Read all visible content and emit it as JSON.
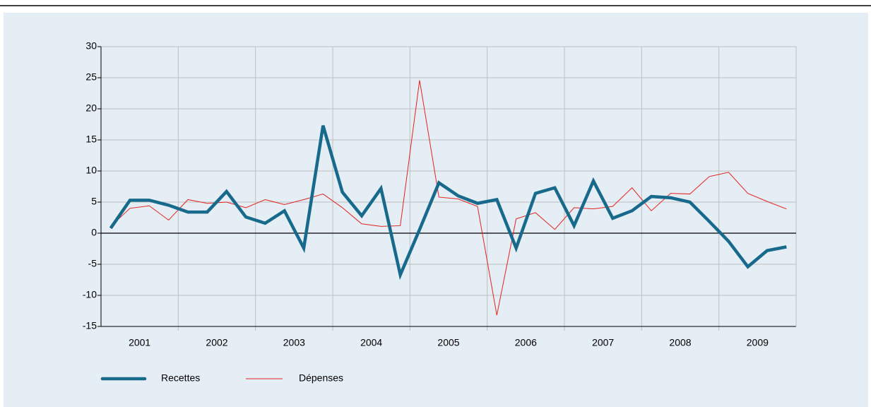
{
  "chart_data": {
    "type": "line",
    "x": [
      2001.125,
      2001.375,
      2001.625,
      2001.875,
      2002.125,
      2002.375,
      2002.625,
      2002.875,
      2003.125,
      2003.375,
      2003.625,
      2003.875,
      2004.125,
      2004.375,
      2004.625,
      2004.875,
      2005.125,
      2005.375,
      2005.625,
      2005.875,
      2006.125,
      2006.375,
      2006.625,
      2006.875,
      2007.125,
      2007.375,
      2007.625,
      2007.875,
      2008.125,
      2008.375,
      2008.625,
      2008.875,
      2009.125,
      2009.375,
      2009.625,
      2009.875
    ],
    "series": [
      {
        "name": "Recettes",
        "color": "#176a8c",
        "width": 4.5,
        "values": [
          0.8,
          5.3,
          5.3,
          4.5,
          3.4,
          3.4,
          6.7,
          2.6,
          1.6,
          3.6,
          -2.4,
          17.3,
          6.6,
          2.8,
          7.2,
          -6.7,
          0.6,
          8.1,
          6.0,
          4.8,
          5.4,
          -2.4,
          6.4,
          7.3,
          1.2,
          8.4,
          2.4,
          3.6,
          5.9,
          5.7,
          5.0,
          1.9,
          -1.3,
          -5.4,
          -2.8,
          -2.2
        ]
      },
      {
        "name": "Dépenses",
        "color": "#e3231f",
        "width": 1,
        "values": [
          1.1,
          4.0,
          4.4,
          2.1,
          5.4,
          4.8,
          5.0,
          4.1,
          5.4,
          4.6,
          5.4,
          6.3,
          4.1,
          1.5,
          1.1,
          1.2,
          24.6,
          5.8,
          5.5,
          4.3,
          -13.2,
          2.3,
          3.3,
          0.6,
          4.1,
          3.9,
          4.3,
          7.3,
          3.6,
          6.4,
          6.3,
          9.1,
          9.8,
          6.4,
          5.1,
          3.9
        ]
      }
    ],
    "xlim": [
      2001,
      2010
    ],
    "xticks": [
      {
        "value": 2001.5,
        "label": "2001"
      },
      {
        "value": 2002.5,
        "label": "2002"
      },
      {
        "value": 2003.5,
        "label": "2003"
      },
      {
        "value": 2004.5,
        "label": "2004"
      },
      {
        "value": 2005.5,
        "label": "2005"
      },
      {
        "value": 2006.5,
        "label": "2006"
      },
      {
        "value": 2007.5,
        "label": "2007"
      },
      {
        "value": 2008.5,
        "label": "2008"
      },
      {
        "value": 2009.5,
        "label": "2009"
      }
    ],
    "xgrid": [
      2002,
      2003,
      2004,
      2005,
      2006,
      2007,
      2008,
      2009
    ],
    "ylim": [
      -15,
      30
    ],
    "yticks": [
      -15,
      -10,
      -5,
      0,
      5,
      10,
      15,
      20,
      25,
      30
    ],
    "grid": true,
    "legend": "bottom"
  }
}
